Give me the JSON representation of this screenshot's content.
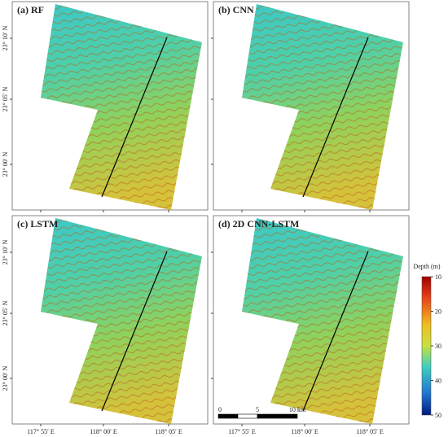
{
  "panels": [
    {
      "title": "(a) RF",
      "y_labels": [
        "23° 10′ N",
        "23° 05′ N",
        "23° 00′ N"
      ]
    },
    {
      "title": "(b) CNN"
    },
    {
      "title": "(c) LSTM",
      "y_labels": [
        "23° 10′ N",
        "23° 05′ N",
        "23° 00′ N"
      ],
      "x_labels": [
        "117° 55′ E",
        "118° 00′ E",
        "118° 05′ E"
      ]
    },
    {
      "title": "(d) 2D CNN-LSTM",
      "x_labels": [
        "117° 55′ E",
        "118° 00′ E",
        "118° 05′ E"
      ],
      "scale_bar": [
        "0",
        "5",
        "10 km"
      ]
    }
  ],
  "colorbar": {
    "label": "Depth (m)",
    "ticks": [
      10,
      20,
      30,
      40,
      50
    ],
    "lim": [
      10,
      50
    ]
  }
}
